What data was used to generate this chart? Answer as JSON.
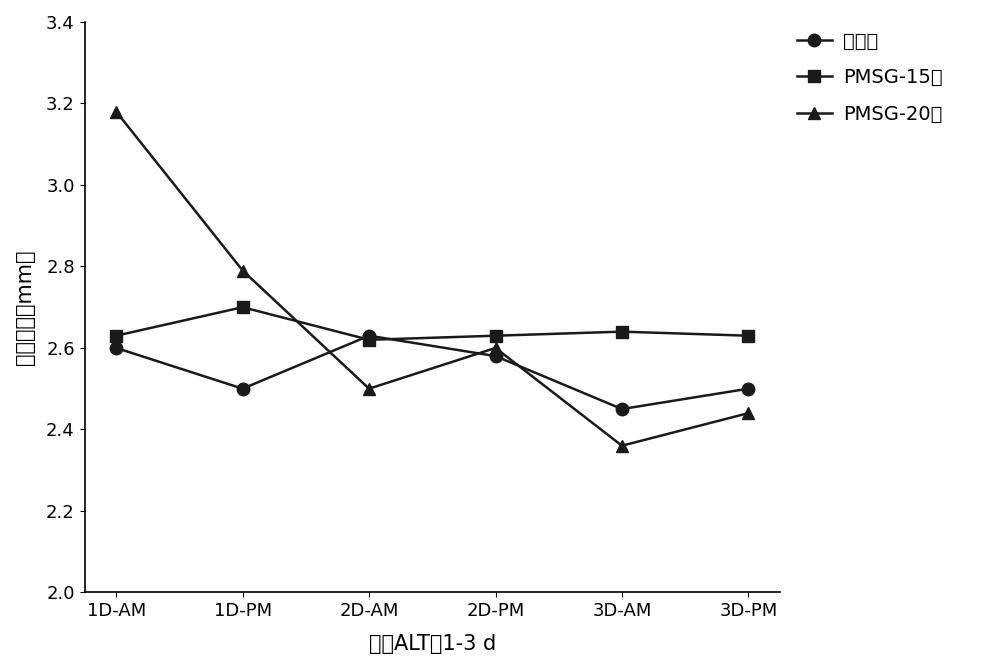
{
  "x_labels": [
    "1D-AM",
    "1D-PM",
    "2D-AM",
    "2D-PM",
    "3D-AM",
    "3D-PM"
  ],
  "series": [
    {
      "name": "常规组",
      "values": [
        2.6,
        2.5,
        2.63,
        2.58,
        2.45,
        2.5
      ],
      "marker": "o",
      "color": "#1a1a1a",
      "linewidth": 1.8,
      "markersize": 9
    },
    {
      "name": "PMSG-15组",
      "values": [
        2.63,
        2.7,
        2.62,
        2.63,
        2.64,
        2.63
      ],
      "marker": "s",
      "color": "#1a1a1a",
      "linewidth": 1.8,
      "markersize": 9
    },
    {
      "name": "PMSG-20组",
      "values": [
        3.18,
        2.79,
        2.5,
        2.6,
        2.36,
        2.44
      ],
      "marker": "^",
      "color": "#1a1a1a",
      "linewidth": 1.8,
      "markersize": 9
    }
  ],
  "ylabel": "卵泡直径（mm）",
  "xlabel": "饲喂ALT的1-3 d",
  "ylim": [
    2.0,
    3.4
  ],
  "yticks": [
    2.0,
    2.2,
    2.4,
    2.6,
    2.8,
    3.0,
    3.2,
    3.4
  ],
  "background_color": "#ffffff",
  "ylabel_fontsize": 15,
  "xlabel_fontsize": 15,
  "tick_fontsize": 13,
  "legend_fontsize": 14
}
